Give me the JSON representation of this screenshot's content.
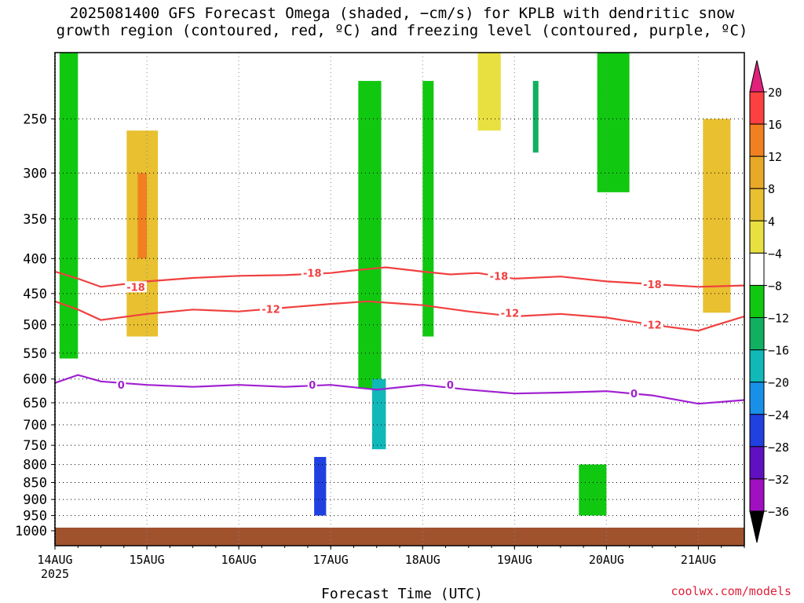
{
  "title_line1": "2025081400 GFS Forecast Omega (shaded, −cm/s) for KPLB with dendritic snow",
  "title_line2": "growth region (contoured, red, ºC) and freezing level (contoured, purple, ºC)",
  "credit": "coolwx.com/models",
  "chart_data": {
    "type": "heatmap",
    "title": "2025081400 GFS Forecast Omega (shaded, −cm/s) for KPLB with dendritic snow growth region (contoured, red, ºC) and freezing level (contoured, purple, ºC)",
    "xlabel": "Forecast Time (UTC)",
    "ylabel": "",
    "x_ticks": [
      "14AUG",
      "15AUG",
      "16AUG",
      "17AUG",
      "18AUG",
      "19AUG",
      "20AUG",
      "21AUG"
    ],
    "x_year_label": "2025",
    "xlim_days_from_14AUG": [
      0,
      7.5
    ],
    "y_ticks": [
      250,
      300,
      350,
      400,
      450,
      500,
      550,
      600,
      650,
      700,
      750,
      800,
      850,
      900,
      950,
      1000
    ],
    "ylim_hPa": [
      200,
      1000
    ],
    "y_scale": "log-pressure",
    "grid": true,
    "colorbar": {
      "labels": [
        "20",
        "16",
        "12",
        "8",
        "4",
        "−4",
        "−8",
        "−12",
        "−16",
        "−20",
        "−24",
        "−28",
        "−32",
        "−36"
      ],
      "levels": [
        20,
        16,
        12,
        8,
        4,
        -4,
        -8,
        -12,
        -16,
        -20,
        -24,
        -28,
        -32,
        -36
      ],
      "colors": [
        "#ff4040",
        "#f08020",
        "#e8a828",
        "#e8c030",
        "#e8e040",
        "#ffffff",
        "#10c810",
        "#10b060",
        "#10b8b8",
        "#1890e8",
        "#2040e0",
        "#6010c0",
        "#a010c0",
        "#a8a8a8",
        "#000000"
      ],
      "top_arrow_color": "#e0207a",
      "bottom_arrow_color": "#000000"
    },
    "contours": [
      {
        "color": "#f04040",
        "label": "-18",
        "points": [
          [
            0,
            418
          ],
          [
            0.25,
            428
          ],
          [
            0.5,
            440
          ],
          [
            1,
            432
          ],
          [
            1.5,
            427
          ],
          [
            2,
            424
          ],
          [
            2.5,
            423
          ],
          [
            3,
            420
          ],
          [
            3.2,
            417
          ],
          [
            3.6,
            412
          ],
          [
            4,
            418
          ],
          [
            4.3,
            422
          ],
          [
            4.6,
            420
          ],
          [
            5,
            428
          ],
          [
            5.5,
            425
          ],
          [
            6,
            432
          ],
          [
            6.5,
            436
          ],
          [
            7,
            440
          ],
          [
            7.5,
            438
          ]
        ]
      },
      {
        "color": "#f04040",
        "label": "-12",
        "points": [
          [
            0,
            462
          ],
          [
            0.25,
            475
          ],
          [
            0.5,
            492
          ],
          [
            1,
            482
          ],
          [
            1.5,
            475
          ],
          [
            2,
            478
          ],
          [
            2.5,
            472
          ],
          [
            3,
            466
          ],
          [
            3.4,
            462
          ],
          [
            4,
            468
          ],
          [
            4.5,
            478
          ],
          [
            5,
            486
          ],
          [
            5.5,
            482
          ],
          [
            6,
            488
          ],
          [
            6.5,
            500
          ],
          [
            7,
            510
          ],
          [
            7.2,
            500
          ],
          [
            7.5,
            486
          ]
        ]
      },
      {
        "color": "#a020d0",
        "label": "0",
        "points": [
          [
            0,
            608
          ],
          [
            0.25,
            592
          ],
          [
            0.5,
            605
          ],
          [
            1,
            612
          ],
          [
            1.5,
            616
          ],
          [
            2,
            612
          ],
          [
            2.5,
            616
          ],
          [
            3,
            612
          ],
          [
            3.5,
            622
          ],
          [
            4,
            612
          ],
          [
            4.5,
            622
          ],
          [
            5,
            630
          ],
          [
            5.5,
            628
          ],
          [
            6,
            625
          ],
          [
            6.5,
            634
          ],
          [
            7,
            652
          ],
          [
            7.5,
            644
          ]
        ]
      }
    ],
    "contour_labels": [
      {
        "text": "-18",
        "x": 0.88,
        "y": 440
      },
      {
        "text": "-18",
        "x": 2.8,
        "y": 420
      },
      {
        "text": "-18",
        "x": 4.83,
        "y": 424
      },
      {
        "text": "-18",
        "x": 6.5,
        "y": 436
      },
      {
        "text": "-12",
        "x": 2.35,
        "y": 474
      },
      {
        "text": "-12",
        "x": 4.95,
        "y": 480
      },
      {
        "text": "-12",
        "x": 6.5,
        "y": 500
      },
      {
        "text": "0",
        "x": 0.72,
        "y": 612
      },
      {
        "text": "0",
        "x": 2.8,
        "y": 612
      },
      {
        "text": "0",
        "x": 4.3,
        "y": 612
      },
      {
        "text": "0",
        "x": 6.3,
        "y": 630
      }
    ],
    "shaded_features": [
      {
        "x0": 0.05,
        "x1": 0.25,
        "p0": 200,
        "p1": 560,
        "value": -8
      },
      {
        "x0": 0.78,
        "x1": 1.12,
        "p0": 260,
        "p1": 520,
        "value": 8
      },
      {
        "x0": 0.9,
        "x1": 1.0,
        "p0": 300,
        "p1": 400,
        "value": 16
      },
      {
        "x0": 3.3,
        "x1": 3.55,
        "p0": 220,
        "p1": 620,
        "value": -8
      },
      {
        "x0": 3.45,
        "x1": 3.6,
        "p0": 600,
        "p1": 760,
        "value": -16
      },
      {
        "x0": 2.82,
        "x1": 2.95,
        "p0": 780,
        "p1": 950,
        "value": -24
      },
      {
        "x0": 4.0,
        "x1": 4.12,
        "p0": 220,
        "p1": 520,
        "value": -8
      },
      {
        "x0": 5.2,
        "x1": 5.26,
        "p0": 220,
        "p1": 280,
        "value": -12
      },
      {
        "x0": 5.9,
        "x1": 6.25,
        "p0": 200,
        "p1": 320,
        "value": -8
      },
      {
        "x0": 7.05,
        "x1": 7.35,
        "p0": 250,
        "p1": 480,
        "value": 8
      },
      {
        "x0": 5.7,
        "x1": 6.0,
        "p0": 800,
        "p1": 950,
        "value": -8
      },
      {
        "x0": 4.6,
        "x1": 4.85,
        "p0": 200,
        "p1": 260,
        "value": 4
      }
    ],
    "ground": {
      "color": "#a0522d",
      "pressure_hPa": 1000
    }
  },
  "x_axis_title": "Forecast Time (UTC)"
}
